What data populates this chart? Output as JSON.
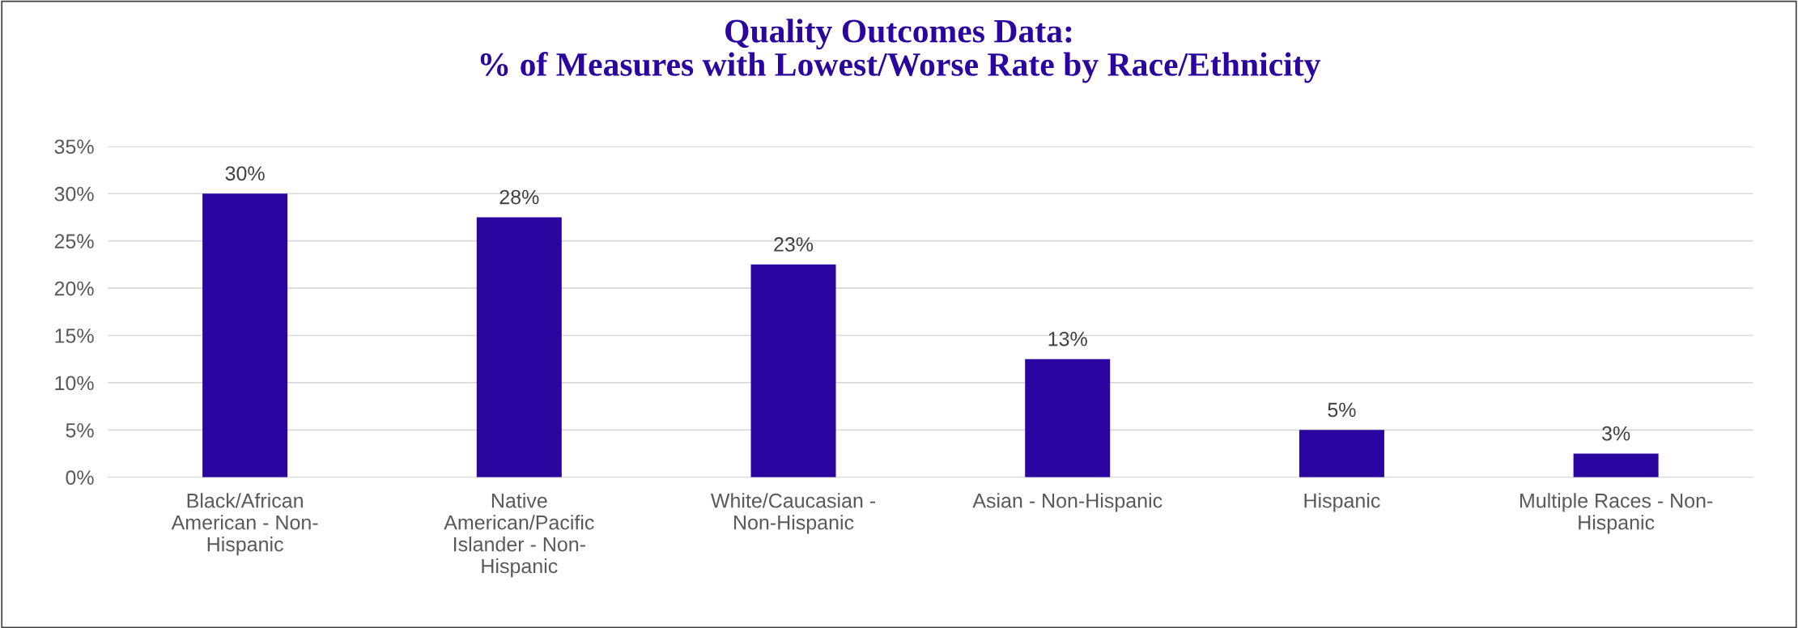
{
  "chart_data": {
    "type": "bar",
    "title": "Quality Outcomes Data:\n% of Measures with Lowest/Worse Rate by Race/Ethnicity",
    "categories": [
      "Black/African\nAmerican - Non-\nHispanic",
      "Native\nAmerican/Pacific\nIslander - Non-\nHispanic",
      "White/Caucasian -\nNon-Hispanic",
      "Asian - Non-Hispanic",
      "Hispanic",
      "Multiple Races - Non-\nHispanic"
    ],
    "values": [
      30,
      27.5,
      22.5,
      12.5,
      5,
      2.5
    ],
    "value_labels": [
      "30%",
      "28%",
      "23%",
      "13%",
      "5%",
      "3%"
    ],
    "color": "#2a05a0",
    "ylim": [
      0,
      35
    ],
    "yticks": [
      {
        "value": 0,
        "label": "0%"
      },
      {
        "value": 5,
        "label": "5%"
      },
      {
        "value": 10,
        "label": "10%"
      },
      {
        "value": 15,
        "label": "15%"
      },
      {
        "value": 20,
        "label": "20%"
      },
      {
        "value": 25,
        "label": "25%"
      },
      {
        "value": 30,
        "label": "30%"
      },
      {
        "value": 35,
        "label": "35%"
      }
    ],
    "grid": "y",
    "legend": false
  }
}
